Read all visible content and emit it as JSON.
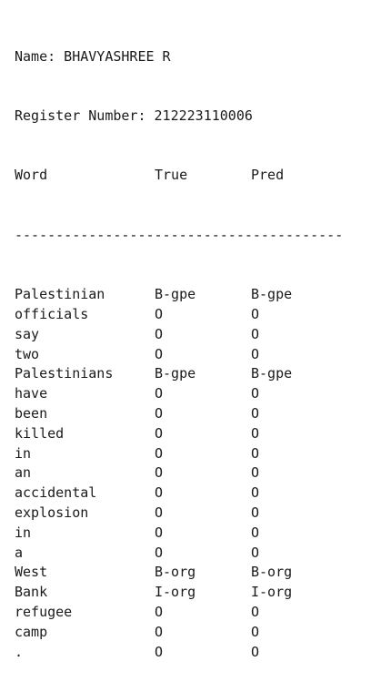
{
  "header": {
    "name_line": "Name: BHAVYASHREE R",
    "register_line": "Register Number: 212223110006"
  },
  "table": {
    "columns": {
      "word": "Word",
      "true": "True",
      "pred": "Pred"
    },
    "separator": "----------------------------------------",
    "rows": [
      {
        "word": "Palestinian",
        "true": "B-gpe",
        "pred": "B-gpe"
      },
      {
        "word": "officials",
        "true": "O",
        "pred": "O"
      },
      {
        "word": "say",
        "true": "O",
        "pred": "O"
      },
      {
        "word": "two",
        "true": "O",
        "pred": "O"
      },
      {
        "word": "Palestinians",
        "true": "B-gpe",
        "pred": "B-gpe"
      },
      {
        "word": "have",
        "true": "O",
        "pred": "O"
      },
      {
        "word": "been",
        "true": "O",
        "pred": "O"
      },
      {
        "word": "killed",
        "true": "O",
        "pred": "O"
      },
      {
        "word": "in",
        "true": "O",
        "pred": "O"
      },
      {
        "word": "an",
        "true": "O",
        "pred": "O"
      },
      {
        "word": "accidental",
        "true": "O",
        "pred": "O"
      },
      {
        "word": "explosion",
        "true": "O",
        "pred": "O"
      },
      {
        "word": "in",
        "true": "O",
        "pred": "O"
      },
      {
        "word": "a",
        "true": "O",
        "pred": "O"
      },
      {
        "word": "West",
        "true": "B-org",
        "pred": "B-org"
      },
      {
        "word": "Bank",
        "true": "I-org",
        "pred": "I-org"
      },
      {
        "word": "refugee",
        "true": "O",
        "pred": "O"
      },
      {
        "word": "camp",
        "true": "O",
        "pred": "O"
      },
      {
        "word": ".",
        "true": "O",
        "pred": "O"
      }
    ]
  }
}
